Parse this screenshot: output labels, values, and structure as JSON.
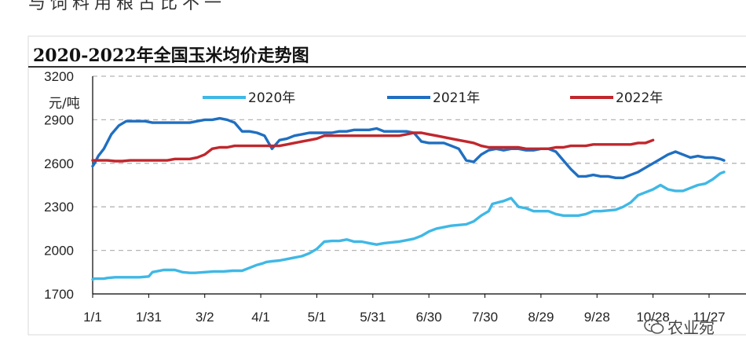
{
  "header_text": "与饲料用粮占比不一",
  "watermark": {
    "text": "农业宛"
  },
  "colors": {
    "s2020": "#3fb8e6",
    "s2021": "#1f6fc1",
    "s2022": "#c0272d",
    "grid": "#b5b5b5",
    "title_rule": "#333333"
  },
  "chart_data": {
    "type": "line",
    "title": "2020-2022年全国玉米均价走势图",
    "ylabel": "元/吨",
    "ylim": [
      1700,
      3200
    ],
    "y_ticks": [
      1700,
      2000,
      2300,
      2600,
      2900,
      3200
    ],
    "x_ticks": [
      "1/1",
      "1/31",
      "3/2",
      "4/1",
      "5/1",
      "5/31",
      "6/30",
      "7/30",
      "8/29",
      "9/28",
      "10/28",
      "11/27"
    ],
    "x_domain_days": [
      0,
      338
    ],
    "grid": "dashed-horizontal",
    "legend_position": "top",
    "series": [
      {
        "name": "2020年",
        "color_key": "s2020",
        "x": [
          0,
          1,
          6,
          8,
          12,
          15,
          20,
          25,
          30,
          32,
          38,
          44,
          48,
          52,
          55,
          60,
          65,
          70,
          75,
          80,
          84,
          88,
          91,
          93,
          96,
          100,
          104,
          108,
          112,
          116,
          120,
          124,
          128,
          132,
          136,
          140,
          144,
          148,
          152,
          156,
          160,
          164,
          168,
          172,
          176,
          180,
          184,
          188,
          192,
          196,
          200,
          204,
          208,
          212,
          214,
          220,
          224,
          228,
          232,
          236,
          240,
          244,
          248,
          252,
          256,
          260,
          264,
          268,
          272,
          276,
          280,
          284,
          288,
          292,
          296,
          300,
          304,
          308,
          312,
          316,
          320,
          324,
          328,
          332,
          336,
          338
        ],
        "y": [
          1800,
          1805,
          1805,
          1810,
          1815,
          1815,
          1815,
          1815,
          1820,
          1850,
          1865,
          1865,
          1850,
          1845,
          1845,
          1850,
          1855,
          1855,
          1860,
          1860,
          1880,
          1900,
          1910,
          1920,
          1925,
          1930,
          1940,
          1950,
          1960,
          1980,
          2010,
          2060,
          2065,
          2065,
          2075,
          2060,
          2060,
          2050,
          2040,
          2050,
          2055,
          2060,
          2070,
          2080,
          2100,
          2130,
          2150,
          2160,
          2170,
          2175,
          2180,
          2200,
          2240,
          2270,
          2320,
          2340,
          2360,
          2300,
          2290,
          2270,
          2270,
          2270,
          2250,
          2240,
          2240,
          2240,
          2250,
          2270,
          2270,
          2275,
          2280,
          2300,
          2330,
          2380,
          2400,
          2420,
          2450,
          2420,
          2410,
          2410,
          2430,
          2450,
          2460,
          2490,
          2530,
          2540
        ]
      },
      {
        "name": "2021年",
        "color_key": "s2021",
        "x": [
          0,
          1,
          3,
          6,
          10,
          14,
          18,
          20,
          24,
          28,
          32,
          36,
          40,
          44,
          48,
          52,
          56,
          60,
          64,
          68,
          72,
          76,
          80,
          84,
          88,
          92,
          96,
          100,
          104,
          108,
          112,
          116,
          120,
          124,
          128,
          132,
          136,
          140,
          144,
          148,
          152,
          156,
          160,
          164,
          168,
          172,
          176,
          180,
          184,
          188,
          192,
          196,
          200,
          204,
          208,
          212,
          216,
          220,
          224,
          228,
          232,
          236,
          240,
          244,
          248,
          252,
          256,
          260,
          264,
          268,
          272,
          276,
          280,
          284,
          288,
          292,
          296,
          300,
          304,
          308,
          312,
          316,
          320,
          324,
          328,
          332,
          336,
          338
        ],
        "y": [
          2580,
          2600,
          2650,
          2700,
          2800,
          2860,
          2890,
          2890,
          2890,
          2890,
          2880,
          2880,
          2880,
          2880,
          2880,
          2880,
          2890,
          2900,
          2900,
          2910,
          2900,
          2880,
          2820,
          2820,
          2810,
          2790,
          2700,
          2760,
          2770,
          2790,
          2800,
          2810,
          2810,
          2810,
          2810,
          2820,
          2820,
          2830,
          2830,
          2830,
          2840,
          2820,
          2820,
          2820,
          2820,
          2810,
          2750,
          2740,
          2740,
          2740,
          2720,
          2700,
          2620,
          2610,
          2660,
          2690,
          2700,
          2690,
          2700,
          2700,
          2690,
          2690,
          2700,
          2700,
          2680,
          2620,
          2560,
          2510,
          2510,
          2520,
          2510,
          2510,
          2500,
          2500,
          2520,
          2540,
          2570,
          2600,
          2630,
          2660,
          2680,
          2660,
          2640,
          2650,
          2640,
          2640,
          2630,
          2620
        ]
      },
      {
        "name": "2022年",
        "color_key": "s2022",
        "x": [
          0,
          4,
          8,
          12,
          16,
          20,
          24,
          28,
          32,
          36,
          40,
          44,
          48,
          52,
          56,
          60,
          64,
          68,
          72,
          76,
          80,
          84,
          88,
          92,
          96,
          100,
          104,
          108,
          112,
          116,
          120,
          124,
          128,
          132,
          136,
          140,
          144,
          148,
          152,
          156,
          160,
          164,
          168,
          172,
          176,
          180,
          184,
          188,
          192,
          196,
          200,
          204,
          208,
          212,
          216,
          220,
          224,
          228,
          232,
          236,
          240,
          244,
          248,
          252,
          256,
          260,
          264,
          268,
          272,
          276,
          280,
          284,
          288,
          292,
          296,
          300
        ],
        "y": [
          2620,
          2620,
          2620,
          2615,
          2615,
          2620,
          2620,
          2620,
          2620,
          2620,
          2620,
          2630,
          2630,
          2630,
          2640,
          2660,
          2700,
          2710,
          2710,
          2720,
          2720,
          2720,
          2720,
          2720,
          2720,
          2720,
          2730,
          2740,
          2750,
          2760,
          2770,
          2790,
          2790,
          2790,
          2790,
          2790,
          2790,
          2790,
          2790,
          2790,
          2790,
          2790,
          2800,
          2810,
          2810,
          2800,
          2790,
          2780,
          2770,
          2760,
          2750,
          2740,
          2720,
          2710,
          2710,
          2710,
          2710,
          2710,
          2700,
          2700,
          2700,
          2700,
          2710,
          2710,
          2720,
          2720,
          2720,
          2730,
          2730,
          2730,
          2730,
          2730,
          2730,
          2740,
          2740,
          2760
        ]
      }
    ]
  }
}
